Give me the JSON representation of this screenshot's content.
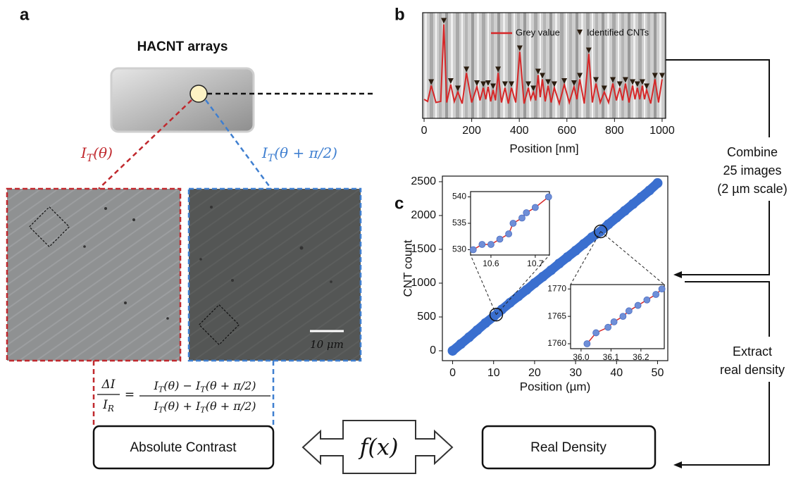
{
  "panel_a": {
    "label": "a",
    "title": "HACNT arrays",
    "beam_red": [
      {
        "text": "I"
      },
      {
        "sub": "T"
      },
      {
        "text": "(θ)"
      }
    ],
    "beam_blue": [
      {
        "text": "I"
      },
      {
        "sub": "T"
      },
      {
        "text": "(θ + π/2)"
      }
    ],
    "scale_bar": "10 μm",
    "equation": {
      "lhs_num": [
        {
          "text": "ΔI"
        }
      ],
      "lhs_den": [
        {
          "text": "I"
        },
        {
          "sub": "R"
        }
      ],
      "equals": "=",
      "rhs_num": [
        {
          "text": "I"
        },
        {
          "sub": "T"
        },
        {
          "text": "(θ) − "
        },
        {
          "text": "I"
        },
        {
          "sub": "T"
        },
        {
          "text": "(θ + π/2)"
        }
      ],
      "rhs_den": [
        {
          "text": "I"
        },
        {
          "sub": "T"
        },
        {
          "text": "(θ) + "
        },
        {
          "text": "I"
        },
        {
          "sub": "T"
        },
        {
          "text": "(θ + π/2)"
        }
      ]
    }
  },
  "flow": {
    "absolute_contrast": "Absolute Contrast",
    "real_density": "Real Density",
    "function": "f(x)",
    "combine": [
      "Combine",
      "25 images",
      "(2 µm scale)"
    ],
    "extract": [
      "Extract",
      "real density"
    ]
  },
  "chart_data": [
    {
      "type": "line",
      "label": "b",
      "xlabel": "Position [nm]",
      "xlim": [
        -6,
        1015
      ],
      "ylim": [
        0,
        100
      ],
      "xticks": [
        0,
        200,
        400,
        600,
        800,
        1000
      ],
      "legend": "upper right",
      "series": [
        {
          "name": "Grey value",
          "color": "#d62728",
          "marker": "line",
          "x": [
            0,
            15,
            30,
            50,
            70,
            83,
            95,
            112,
            127,
            142,
            160,
            178,
            200,
            222,
            235,
            249,
            259,
            269,
            280,
            290,
            300,
            311,
            325,
            340,
            354,
            367,
            385,
            402,
            420,
            438,
            448,
            459,
            469,
            479,
            488,
            497,
            509,
            521,
            534,
            547,
            568,
            589,
            610,
            630,
            642,
            654,
            673,
            692,
            707,
            722,
            740,
            757,
            775,
            793,
            808,
            822,
            834,
            846,
            861,
            876,
            886,
            896,
            906,
            917,
            926,
            935,
            952,
            970,
            985,
            1000
          ],
          "values": [
            18,
            16,
            31,
            15,
            16,
            89,
            15,
            32,
            16,
            25,
            14,
            43,
            15,
            30,
            17,
            29,
            18,
            30,
            16,
            27,
            17,
            43,
            15,
            29,
            14,
            29,
            15,
            63,
            14,
            29,
            18,
            25,
            17,
            41,
            20,
            37,
            16,
            31,
            15,
            29,
            14,
            32,
            15,
            30,
            18,
            37,
            14,
            61,
            15,
            33,
            15,
            25,
            15,
            33,
            17,
            29,
            17,
            33,
            15,
            31,
            18,
            29,
            18,
            31,
            18,
            27,
            14,
            37,
            15,
            37
          ]
        },
        {
          "name": "Identified CNTs",
          "color": "#2b1d10",
          "marker": "triangle-down",
          "x": [
            30,
            83,
            112,
            142,
            178,
            222,
            249,
            269,
            290,
            311,
            340,
            367,
            402,
            438,
            459,
            479,
            497,
            521,
            547,
            589,
            630,
            654,
            692,
            722,
            757,
            793,
            822,
            846,
            876,
            896,
            917,
            935,
            970,
            1000
          ],
          "values": [
            31,
            89,
            32,
            25,
            43,
            30,
            29,
            30,
            27,
            43,
            29,
            29,
            63,
            29,
            25,
            41,
            37,
            31,
            29,
            32,
            30,
            37,
            61,
            33,
            25,
            33,
            29,
            33,
            31,
            29,
            31,
            27,
            37,
            37
          ]
        }
      ]
    },
    {
      "type": "scatter",
      "label": "c",
      "xlabel": "Position (µm)",
      "ylabel": "CNT count",
      "xlim": [
        -2.5,
        52.5
      ],
      "ylim": [
        -146,
        2583
      ],
      "xticks": [
        0,
        10,
        20,
        30,
        40,
        50
      ],
      "yticks": [
        0,
        500,
        1000,
        1500,
        2000,
        2500
      ],
      "series": [
        {
          "color": "#3a6fcf",
          "x": [
            0,
            2,
            4,
            6,
            8,
            10,
            12,
            14,
            16,
            18,
            20,
            22,
            24,
            26,
            28,
            30,
            32,
            34,
            36,
            38,
            40,
            42,
            44,
            46,
            48,
            50
          ],
          "values": [
            0,
            100,
            200,
            305,
            410,
            505,
            610,
            710,
            805,
            900,
            1000,
            1095,
            1190,
            1290,
            1385,
            1480,
            1580,
            1680,
            1760,
            1870,
            1970,
            2070,
            2170,
            2270,
            2370,
            2480
          ]
        }
      ],
      "insets": [
        {
          "xlim": [
            10.554,
            10.732
          ],
          "ylim": [
            529,
            541
          ],
          "xticks": [
            10.6,
            10.7
          ],
          "yticks": [
            530,
            535,
            540
          ],
          "line_color": "#d62728",
          "marker_color": "#6f8fd8",
          "x": [
            10.56,
            10.58,
            10.6,
            10.62,
            10.64,
            10.65,
            10.67,
            10.68,
            10.7,
            10.73
          ],
          "values": [
            530,
            531,
            531,
            532,
            533,
            535,
            536,
            537,
            538,
            540
          ]
        },
        {
          "xlim": [
            35.965,
            36.278
          ],
          "ylim": [
            1759.1,
            1770.8
          ],
          "xticks": [
            {
              "value": 36,
              "label": "36.0"
            },
            36.1,
            36.2
          ],
          "yticks": [
            1760,
            1765,
            1770
          ],
          "line_color": "#d62728",
          "marker_color": "#6f8fd8",
          "x": [
            36.02,
            36.05,
            36.09,
            36.11,
            36.14,
            36.16,
            36.19,
            36.22,
            36.25,
            36.27
          ],
          "values": [
            1760,
            1762,
            1763,
            1764,
            1765,
            1766,
            1767,
            1768,
            1769,
            1770
          ]
        }
      ]
    }
  ]
}
